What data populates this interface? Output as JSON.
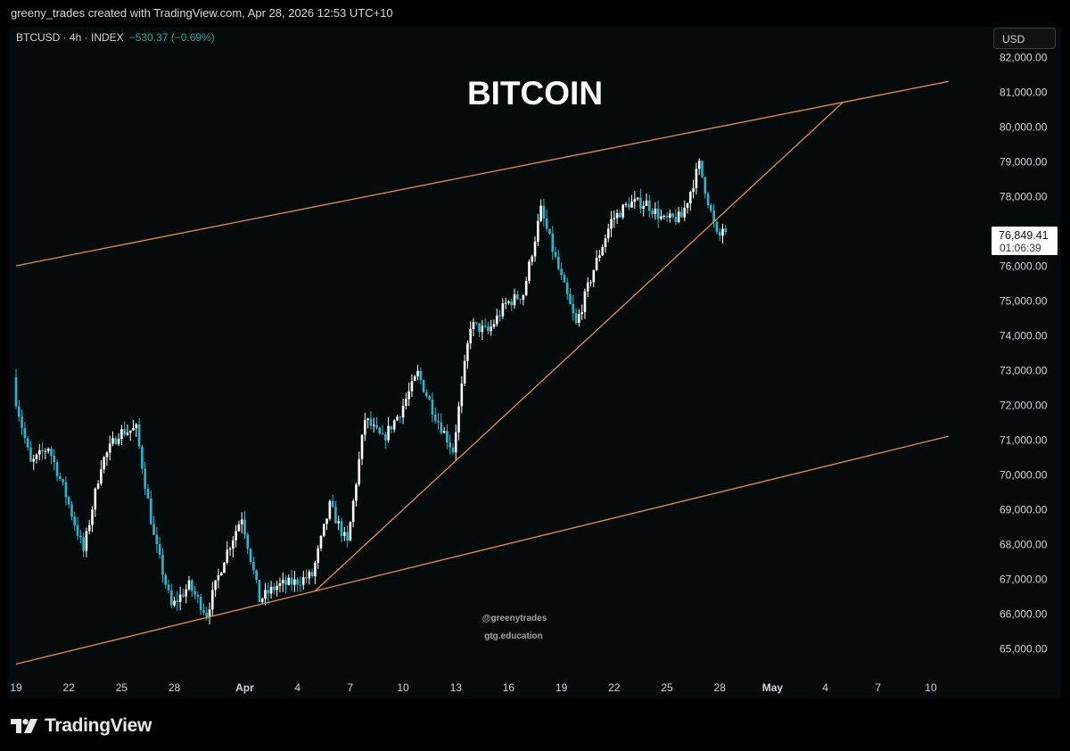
{
  "header": {
    "attribution": "greeny_trades created with TradingView.com, Apr 28, 2026 12:53 UTC+10"
  },
  "legend": {
    "symbol": "BTCUSD · 4h · INDEX",
    "change": "−530.37 (−0.69%)"
  },
  "currency_button": "USD",
  "watermark": {
    "line1": "@greenytrades",
    "line2": "gtg.education"
  },
  "brand": "TradingView",
  "colors": {
    "up": "#ffffff",
    "down": "#26b8cf",
    "trendline": "#e8913a",
    "background": "#050b0b"
  },
  "chart_data": {
    "type": "candlestick",
    "title": "BITCOIN",
    "symbol": "BTCUSD",
    "interval": "4h",
    "last_price": "76,849.41",
    "countdown": "01:06:39",
    "ylim": [
      64500,
      82500
    ],
    "y_ticks": [
      "65,000.00",
      "66,000.00",
      "67,000.00",
      "68,000.00",
      "69,000.00",
      "70,000.00",
      "71,000.00",
      "72,000.00",
      "73,000.00",
      "74,000.00",
      "75,000.00",
      "76,000.00",
      "77,000.00",
      "78,000.00",
      "79,000.00",
      "80,000.00",
      "81,000.00",
      "82,000.00"
    ],
    "x_ticks": [
      "19",
      "22",
      "25",
      "28",
      "Apr",
      "4",
      "7",
      "10",
      "13",
      "16",
      "19",
      "22",
      "25",
      "28",
      "May",
      "4",
      "7",
      "10"
    ],
    "trendlines": [
      {
        "name": "channel-upper",
        "points": [
          [
            "Mar 19",
            76000
          ],
          [
            "May 11",
            81300
          ]
        ]
      },
      {
        "name": "channel-lower",
        "points": [
          [
            "Mar 19",
            64550
          ],
          [
            "May 11",
            71100
          ]
        ]
      },
      {
        "name": "rising-support",
        "points": [
          [
            "Apr 5",
            66650
          ],
          [
            "May 5",
            80700
          ]
        ]
      }
    ],
    "approx_closes": [
      {
        "date": "Mar 19",
        "close": 72500
      },
      {
        "date": "Mar 20",
        "close": 70300
      },
      {
        "date": "Mar 21",
        "close": 70800
      },
      {
        "date": "Mar 22",
        "close": 69400
      },
      {
        "date": "Mar 23",
        "close": 67800
      },
      {
        "date": "Mar 24",
        "close": 70300
      },
      {
        "date": "Mar 25",
        "close": 71200
      },
      {
        "date": "Mar 26",
        "close": 71300
      },
      {
        "date": "Mar 27",
        "close": 68200
      },
      {
        "date": "Mar 28",
        "close": 66200
      },
      {
        "date": "Mar 29",
        "close": 66800
      },
      {
        "date": "Mar 30",
        "close": 66000
      },
      {
        "date": "Mar 31",
        "close": 67600
      },
      {
        "date": "Apr 1",
        "close": 68800
      },
      {
        "date": "Apr 2",
        "close": 66400
      },
      {
        "date": "Apr 3",
        "close": 66800
      },
      {
        "date": "Apr 4",
        "close": 66900
      },
      {
        "date": "Apr 5",
        "close": 67100
      },
      {
        "date": "Apr 6",
        "close": 69100
      },
      {
        "date": "Apr 7",
        "close": 68000
      },
      {
        "date": "Apr 8",
        "close": 71600
      },
      {
        "date": "Apr 9",
        "close": 71000
      },
      {
        "date": "Apr 10",
        "close": 71800
      },
      {
        "date": "Apr 11",
        "close": 72900
      },
      {
        "date": "Apr 12",
        "close": 71700
      },
      {
        "date": "Apr 13",
        "close": 70700
      },
      {
        "date": "Apr 14",
        "close": 74300
      },
      {
        "date": "Apr 15",
        "close": 74100
      },
      {
        "date": "Apr 16",
        "close": 74900
      },
      {
        "date": "Apr 17",
        "close": 75200
      },
      {
        "date": "Apr 18",
        "close": 77600
      },
      {
        "date": "Apr 19",
        "close": 75900
      },
      {
        "date": "Apr 20",
        "close": 74300
      },
      {
        "date": "Apr 21",
        "close": 75900
      },
      {
        "date": "Apr 22",
        "close": 77300
      },
      {
        "date": "Apr 23",
        "close": 77800
      },
      {
        "date": "Apr 24",
        "close": 77800
      },
      {
        "date": "Apr 25",
        "close": 77300
      },
      {
        "date": "Apr 26",
        "close": 77400
      },
      {
        "date": "Apr 27",
        "close": 78900
      },
      {
        "date": "Apr 28",
        "close": 76850
      }
    ]
  }
}
